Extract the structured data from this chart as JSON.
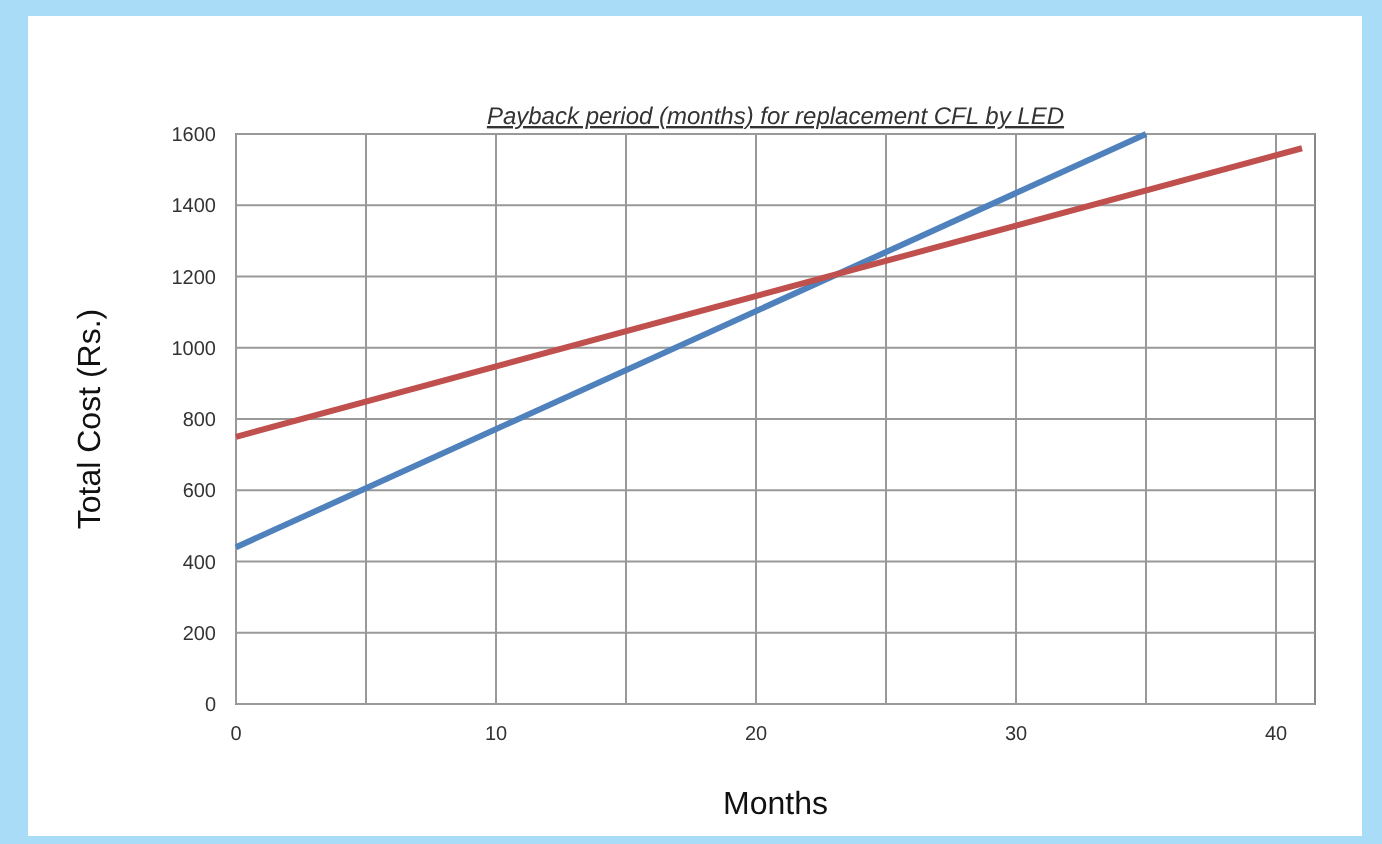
{
  "chart_data": {
    "type": "line",
    "title": "Payback period (months) for replacement CFL by LED",
    "xlabel": "Months",
    "ylabel": "Total Cost (Rs.)",
    "series": [
      {
        "color": "#4f81bd",
        "x": [
          0,
          35
        ],
        "values": [
          440,
          1600
        ]
      },
      {
        "color": "#c0504d",
        "x": [
          0,
          41
        ],
        "values": [
          750,
          1560
        ]
      }
    ],
    "xlim": [
      0,
      41.5
    ],
    "ylim": [
      0,
      1600
    ],
    "xticks": [
      0,
      {
        "value": 5,
        "label": null
      },
      10,
      {
        "value": 15,
        "label": null
      },
      20,
      {
        "value": 25,
        "label": null
      },
      30,
      {
        "value": 35,
        "label": null
      },
      40
    ],
    "yticks": [
      0,
      200,
      400,
      600,
      800,
      1000,
      1200,
      1400,
      1600
    ],
    "grid": true,
    "marker": "none",
    "line_style": "solid"
  }
}
